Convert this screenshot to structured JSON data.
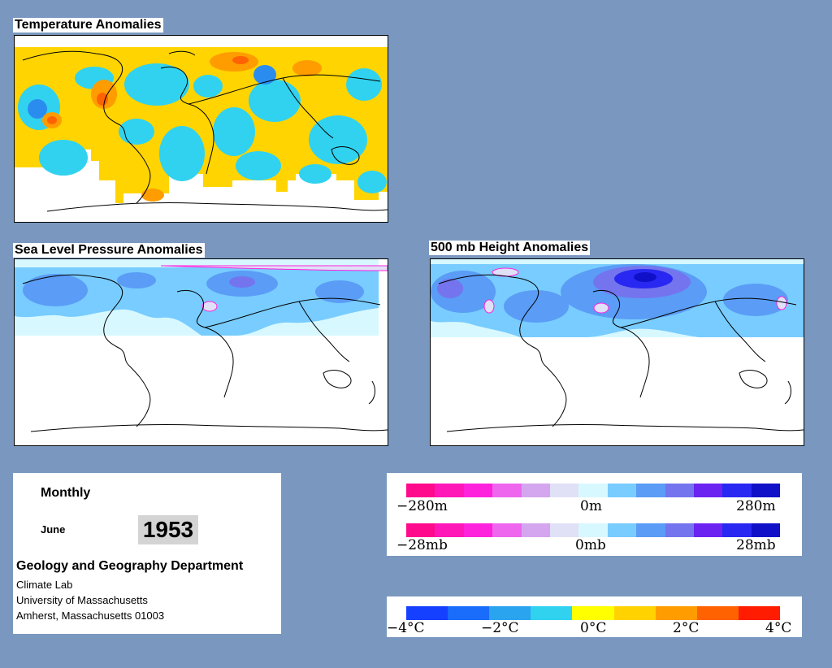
{
  "maps": {
    "temperature": {
      "title": "Temperature Anomalies"
    },
    "slp": {
      "title": "Sea Level Pressure Anomalies"
    },
    "height500": {
      "title": "500 mb Height Anomalies"
    }
  },
  "info": {
    "period": "Monthly",
    "month": "June",
    "year": "1953",
    "department": "Geology and Geography Department",
    "lab": "Climate Lab",
    "university": "University of Massachusetts",
    "address": "Amherst, Massachusetts 01003"
  },
  "legends": {
    "height": {
      "min": "−280m",
      "mid": "0m",
      "max": "280m"
    },
    "pressure": {
      "min": "−28mb",
      "mid": "0mb",
      "max": "28mb"
    },
    "temperature": {
      "t1": "−4°C",
      "t2": "−2°C",
      "t3": "0°C",
      "t4": "2°C",
      "t5": "4°C"
    }
  },
  "colors": {
    "background": "#7a98bf",
    "anomaly_scale": [
      "#ff0a8c",
      "#ff17b8",
      "#ff22dd",
      "#ee66ee",
      "#d4a6ef",
      "#e0e0f6",
      "#d7f8ff",
      "#78ccff",
      "#5a9cf6",
      "#7474ee",
      "#6b23f2",
      "#2828f2",
      "#1010c8"
    ],
    "temperature_scale": [
      "#1540ff",
      "#1a6cfa",
      "#2aa4ef",
      "#30d2f0",
      "#ffff00",
      "#ffd200",
      "#ff9c00",
      "#ff6200",
      "#ff1c00"
    ]
  }
}
